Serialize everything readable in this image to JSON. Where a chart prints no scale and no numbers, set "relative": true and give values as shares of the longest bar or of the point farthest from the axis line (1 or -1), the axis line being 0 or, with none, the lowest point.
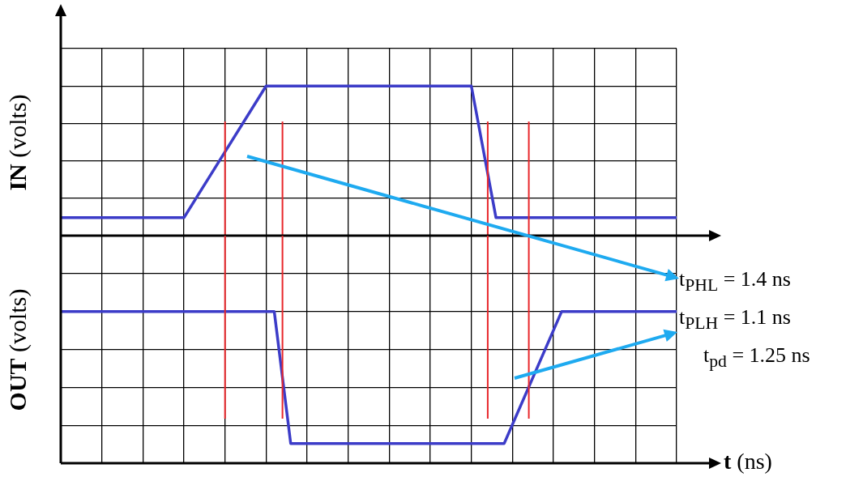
{
  "chart_data": [
    {
      "type": "line",
      "ylabel": "IN (volts)",
      "relative": true,
      "grid": true,
      "legend": false,
      "marker": "none",
      "tick_labels": false,
      "categories": [
        null,
        null,
        null,
        null,
        null,
        null,
        null,
        null,
        null,
        null,
        null,
        null,
        null,
        null,
        null,
        null,
        null,
        null,
        null,
        null,
        null,
        null,
        null,
        null,
        null,
        null,
        null,
        null,
        null,
        null,
        null,
        null,
        null,
        null,
        null,
        null,
        null,
        null,
        null,
        null,
        null,
        null,
        null,
        null,
        null,
        null,
        null,
        null,
        null,
        null,
        null,
        null,
        null,
        null,
        null,
        null,
        null,
        null,
        null,
        null,
        null,
        null,
        null,
        null,
        null,
        null,
        null,
        null,
        null,
        null,
        null,
        null,
        null,
        null,
        null,
        null
      ],
      "series": [
        {
          "color": "#3c3cc8",
          "values": [
            0.12,
            null,
            null,
            null,
            null,
            null,
            null,
            null,
            null,
            null,
            null,
            null,
            null,
            null,
            null,
            0.12,
            null,
            null,
            null,
            null,
            null,
            null,
            null,
            null,
            null,
            1,
            null,
            null,
            null,
            null,
            null,
            null,
            null,
            null,
            null,
            null,
            null,
            null,
            null,
            null,
            null,
            null,
            null,
            null,
            null,
            null,
            null,
            null,
            null,
            null,
            1,
            null,
            null,
            0.12,
            null,
            null,
            null,
            null,
            null,
            null,
            null,
            null,
            null,
            null,
            null,
            null,
            null,
            null,
            null,
            null,
            null,
            null,
            null,
            null,
            null,
            0.12
          ]
        }
      ]
    },
    {
      "type": "line",
      "ylabel": "OUT (volts)",
      "xlabel": "t (ns)",
      "relative": true,
      "grid": true,
      "legend": false,
      "marker": "none",
      "tick_labels": false,
      "categories": [
        null,
        null,
        null,
        null,
        null,
        null,
        null,
        null,
        null,
        null,
        null,
        null,
        null,
        null,
        null,
        null,
        null,
        null,
        null,
        null,
        null,
        null,
        null,
        null,
        null,
        null,
        null,
        null,
        null,
        null,
        null,
        null,
        null,
        null,
        null,
        null,
        null,
        null,
        null,
        null,
        null,
        null,
        null,
        null,
        null,
        null,
        null,
        null,
        null,
        null,
        null,
        null,
        null,
        null,
        null,
        null,
        null,
        null,
        null,
        null,
        null,
        null,
        null,
        null,
        null,
        null,
        null,
        null,
        null,
        null,
        null,
        null,
        null,
        null,
        null,
        null
      ],
      "series": [
        {
          "color": "#3c3cc8",
          "values": [
            1,
            null,
            null,
            null,
            null,
            null,
            null,
            null,
            null,
            null,
            null,
            null,
            null,
            null,
            null,
            null,
            null,
            null,
            null,
            null,
            null,
            null,
            null,
            null,
            null,
            null,
            1,
            null,
            0.13,
            null,
            null,
            null,
            null,
            null,
            null,
            null,
            null,
            null,
            null,
            null,
            null,
            null,
            null,
            null,
            null,
            null,
            null,
            null,
            null,
            null,
            null,
            null,
            null,
            null,
            0.13,
            null,
            null,
            null,
            null,
            null,
            null,
            1,
            null,
            null,
            null,
            null,
            null,
            null,
            null,
            null,
            null,
            null,
            null,
            null,
            null,
            1
          ]
        }
      ],
      "annotations": [
        "t$_{PHL}$ = 1.4 ns",
        "t$_{PLH}$ = 1.1 ns",
        "t$_{pd}$ = 1.25 ns"
      ]
    }
  ]
}
